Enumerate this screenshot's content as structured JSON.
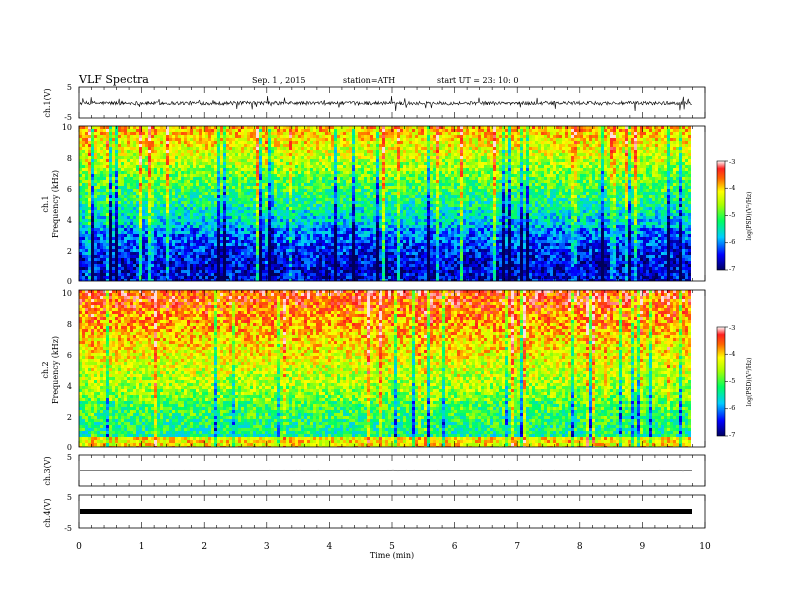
{
  "header": {
    "title": "VLF  Spectra",
    "date": "Sep. 1  , 2015",
    "station": "station=ATH",
    "start": "start  UT  =   23: 10: 0"
  },
  "chart_data": [
    {
      "type": "line",
      "name": "ch1-waveform",
      "ylabel": "ch.1(V)",
      "ylim": [
        -5,
        5
      ],
      "yticks": [
        "5",
        "-5"
      ],
      "baseline": -0.2,
      "noise_amplitude": 1.2
    },
    {
      "type": "heatmap",
      "name": "ch1-spectrogram",
      "ylabel": "Frequency  (kHz)",
      "channel_label": "ch.1",
      "ylim": [
        0,
        10
      ],
      "yticks": [
        "0",
        "2",
        "4",
        "6",
        "8",
        "10"
      ],
      "colorbar": {
        "label": "log(PSD)(V²/Hz)",
        "range": [
          -7,
          -3
        ],
        "ticks": [
          "-3",
          "-4",
          "-5",
          "-6",
          "-7"
        ]
      }
    },
    {
      "type": "heatmap",
      "name": "ch2-spectrogram",
      "ylabel": "Frequency  (kHz)",
      "channel_label": "ch.2",
      "ylim": [
        0,
        10
      ],
      "yticks": [
        "0",
        "2",
        "4",
        "6",
        "8",
        "10"
      ],
      "colorbar": {
        "label": "log(PSD)(V²/Hz)",
        "range": [
          -7,
          -3
        ],
        "ticks": [
          "-3",
          "-4",
          "-5",
          "-6",
          "-7"
        ]
      }
    },
    {
      "type": "line",
      "name": "ch3-waveform",
      "ylabel": "ch.3(V)",
      "ylim": [
        -5,
        5
      ],
      "yticks": [
        "5",
        ""
      ],
      "baseline": 0,
      "noise_amplitude": 0.05
    },
    {
      "type": "line",
      "name": "ch4-waveform",
      "ylabel": "ch.4(V)",
      "ylim": [
        -5,
        5
      ],
      "yticks": [
        "5",
        "-5"
      ],
      "baseline": -1.5,
      "noise_amplitude": 0.05
    }
  ],
  "xaxis": {
    "label": "Time  (min)",
    "range": [
      0,
      10
    ],
    "data_end": 9.8,
    "ticks": [
      "0",
      "1",
      "2",
      "3",
      "4",
      "5",
      "6",
      "7",
      "8",
      "9",
      "10"
    ]
  }
}
